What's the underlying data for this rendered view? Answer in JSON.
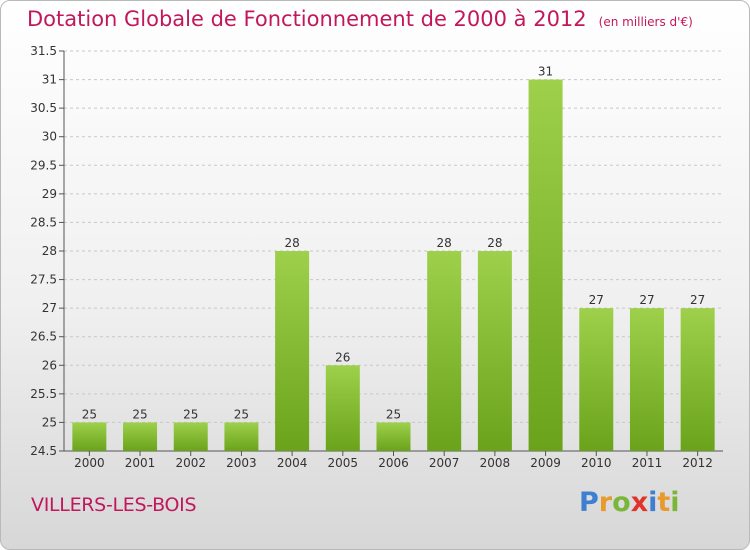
{
  "chart_data": {
    "type": "bar",
    "title": "Dotation Globale de Fonctionnement de 2000 à 2012",
    "unit": "(en milliers d'€)",
    "categories": [
      "2000",
      "2001",
      "2002",
      "2003",
      "2004",
      "2005",
      "2006",
      "2007",
      "2008",
      "2009",
      "2010",
      "2011",
      "2012"
    ],
    "values": [
      25,
      25,
      25,
      25,
      28,
      26,
      25,
      28,
      28,
      31,
      27,
      27,
      27
    ],
    "ylim": [
      24.5,
      31.5
    ],
    "yticks": [
      24.5,
      25,
      25.5,
      26,
      26.5,
      27,
      27.5,
      28,
      28.5,
      29,
      29.5,
      30,
      30.5,
      31,
      31.5
    ],
    "grid": true,
    "bar_color_top": "#9ed04b",
    "bar_color_bottom": "#6aa31b"
  },
  "place_name": "VILLERS-LES-BOIS",
  "logo": {
    "letters": [
      "P",
      "r",
      "o",
      "x",
      "i",
      "t",
      "i"
    ],
    "colors": [
      "#3f7fd2",
      "#e89a2c",
      "#7ab63a",
      "#e0342b",
      "#3f7fd2",
      "#e89a2c",
      "#7ab63a"
    ]
  }
}
